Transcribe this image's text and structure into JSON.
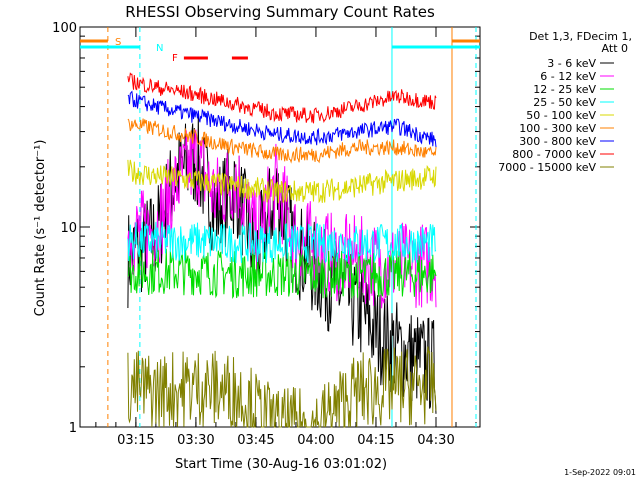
{
  "chart_data": {
    "type": "line",
    "title": "RHESSI Observing Summary Count Rates",
    "xlabel": "Start Time (30-Aug-16 03:01:02)",
    "ylabel": "Count Rate (s⁻¹ detector⁻¹)",
    "y_scale": "log",
    "ylim": [
      1,
      100
    ],
    "xlim": [
      "03:01:02",
      "04:41:00"
    ],
    "x_ticks": [
      "03:15",
      "03:30",
      "03:45",
      "04:00",
      "04:15",
      "04:30"
    ],
    "y_ticks": [
      "1",
      "10",
      "100"
    ],
    "legend_header": [
      "Det 1,3, FDecim 1,",
      "Att 0"
    ],
    "series": [
      {
        "name": "3 - 6 keV",
        "color": "#000000",
        "x": [
          "03:13",
          "03:20",
          "03:25",
          "03:30",
          "03:35",
          "03:40",
          "03:45",
          "03:50",
          "03:55",
          "04:00",
          "04:05",
          "04:10",
          "04:15",
          "04:20",
          "04:25",
          "04:30"
        ],
        "y": [
          7,
          9,
          18,
          22,
          12,
          16,
          7,
          15,
          8,
          6,
          5,
          4,
          3,
          2.5,
          2.2,
          2
        ]
      },
      {
        "name": "6 - 12 keV",
        "color": "#ff00ff",
        "x": [
          "03:13",
          "03:20",
          "03:25",
          "03:30",
          "03:35",
          "03:40",
          "03:45",
          "03:50",
          "03:55",
          "04:00",
          "04:05",
          "04:10",
          "04:15",
          "04:20",
          "04:25",
          "04:30"
        ],
        "y": [
          9,
          10,
          16,
          22,
          14,
          18,
          9,
          16,
          9,
          8,
          7,
          7,
          6.5,
          6.5,
          6.5,
          6.5
        ]
      },
      {
        "name": "12 - 25 keV",
        "color": "#00dd00",
        "x": [
          "03:13",
          "03:20",
          "03:30",
          "03:40",
          "03:50",
          "04:00",
          "04:10",
          "04:20",
          "04:30"
        ],
        "y": [
          6,
          6,
          6,
          5.8,
          5.8,
          5.8,
          5.8,
          5.8,
          5.8
        ]
      },
      {
        "name": "25 - 50 keV",
        "color": "#00ffff",
        "x": [
          "03:13",
          "03:20",
          "03:30",
          "03:40",
          "03:50",
          "04:00",
          "04:10",
          "04:20",
          "04:30"
        ],
        "y": [
          8.5,
          8.5,
          8.5,
          8.3,
          8.3,
          8.3,
          8.3,
          8.3,
          8.3
        ]
      },
      {
        "name": "50 - 100 keV",
        "color": "#d8d800",
        "x": [
          "03:13",
          "03:20",
          "03:30",
          "03:40",
          "03:50",
          "04:00",
          "04:10",
          "04:20",
          "04:30"
        ],
        "y": [
          19,
          18,
          17,
          16,
          15,
          15,
          16,
          17,
          18
        ]
      },
      {
        "name": "100 - 300 keV",
        "color": "#ff8000",
        "x": [
          "03:13",
          "03:20",
          "03:30",
          "03:40",
          "03:50",
          "04:00",
          "04:10",
          "04:20",
          "04:30"
        ],
        "y": [
          33,
          31,
          28,
          25,
          23,
          23,
          25,
          25,
          23
        ]
      },
      {
        "name": "300 - 800 keV",
        "color": "#0000ff",
        "x": [
          "03:13",
          "03:20",
          "03:30",
          "03:40",
          "03:50",
          "04:00",
          "04:10",
          "04:20",
          "04:30"
        ],
        "y": [
          44,
          40,
          36,
          32,
          29,
          28,
          30,
          32,
          27
        ]
      },
      {
        "name": "800 - 7000 keV",
        "color": "#ff0000",
        "x": [
          "03:13",
          "03:20",
          "03:30",
          "03:40",
          "03:50",
          "04:00",
          "04:10",
          "04:20",
          "04:30"
        ],
        "y": [
          54,
          50,
          46,
          41,
          37,
          36,
          40,
          45,
          42
        ]
      },
      {
        "name": "7000 - 15000 keV",
        "color": "#808000",
        "x": [
          "03:13",
          "03:20",
          "03:30",
          "03:40",
          "03:50",
          "04:00",
          "04:10",
          "04:20",
          "04:30"
        ],
        "y": [
          1.6,
          1.5,
          1.6,
          1.5,
          1.0,
          1.0,
          1.5,
          1.6,
          1.6
        ]
      }
    ],
    "flags": [
      {
        "label": "S",
        "color": "#ff8000"
      },
      {
        "label": "N",
        "color": "#00ffff"
      },
      {
        "label": "F",
        "color": "#ff0000"
      }
    ],
    "footer_date": "1-Sep-2022 09:01"
  }
}
